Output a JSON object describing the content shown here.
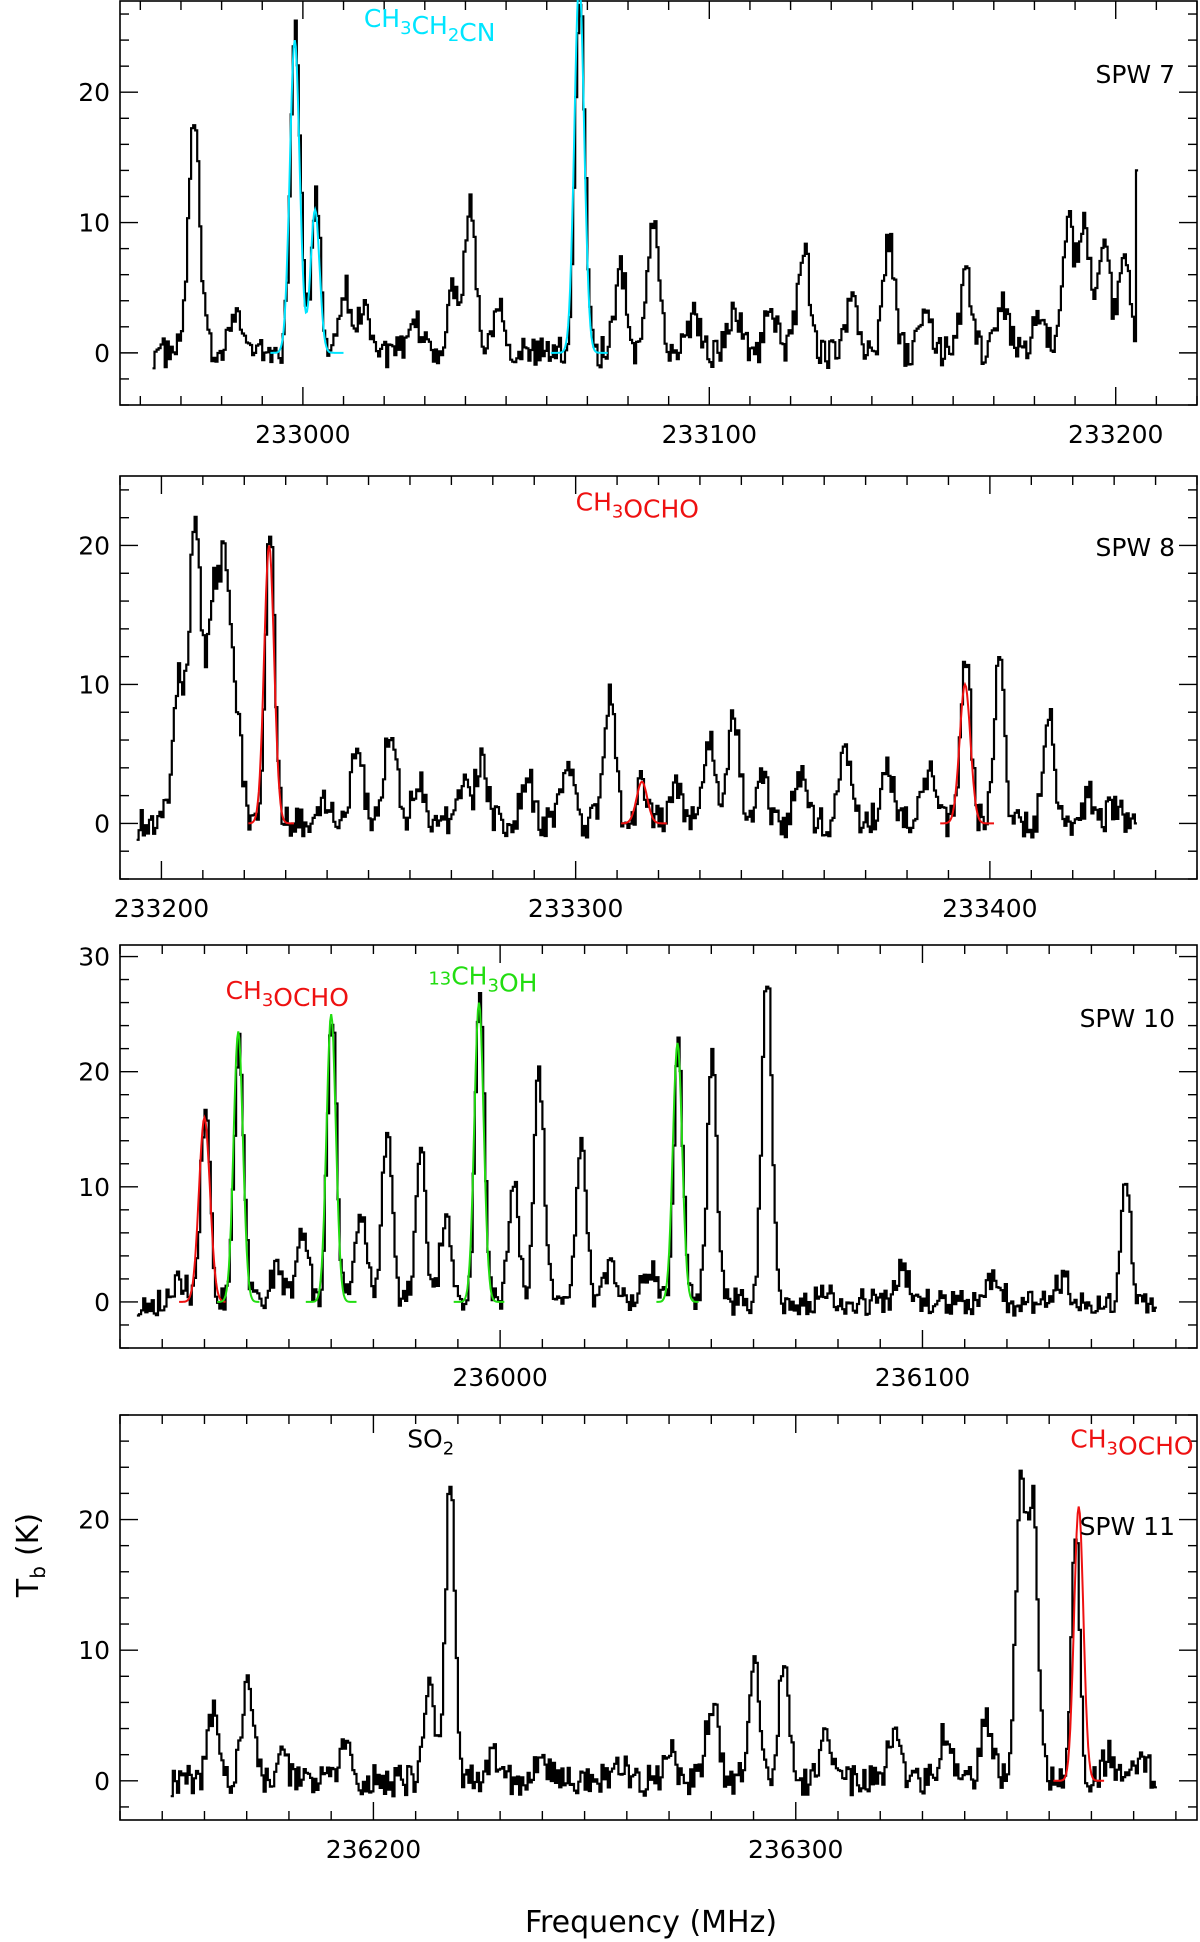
{
  "chart_data": [
    {
      "type": "line",
      "panel_label": "SPW 7",
      "xlim": [
        232955,
        233220
      ],
      "ylim": [
        -4,
        27
      ],
      "x_ticks": [
        "233000",
        "233100",
        "233200"
      ],
      "y_ticks": [
        "0",
        "10",
        "20"
      ],
      "annotations": [
        {
          "text": "CH3CH2CN",
          "parts": [
            [
              "CH",
              ""
            ],
            [
              "3",
              "sub"
            ],
            [
              "CH",
              ""
            ],
            [
              "2",
              "sub"
            ],
            [
              "CN",
              ""
            ]
          ],
          "color": "#00e5ff",
          "x": 233015,
          "y": 25
        }
      ],
      "observed_peaks": [
        {
          "x": 232973,
          "y": 17.5,
          "w": 1.4
        },
        {
          "x": 232983,
          "y": 3.5,
          "w": 1.5
        },
        {
          "x": 232998,
          "y": 25,
          "w": 1.2
        },
        {
          "x": 233003,
          "y": 12,
          "w": 1.1
        },
        {
          "x": 233010,
          "y": 5,
          "w": 1.5
        },
        {
          "x": 233015,
          "y": 3.5,
          "w": 1.5
        },
        {
          "x": 233028,
          "y": 2,
          "w": 1.5
        },
        {
          "x": 233037,
          "y": 5,
          "w": 1.5
        },
        {
          "x": 233041,
          "y": 11.5,
          "w": 1.3
        },
        {
          "x": 233048,
          "y": 4,
          "w": 1.5
        },
        {
          "x": 233068,
          "y": 28,
          "w": 1.2
        },
        {
          "x": 233078,
          "y": 6.5,
          "w": 1.4
        },
        {
          "x": 233086,
          "y": 10.5,
          "w": 1.4
        },
        {
          "x": 233096,
          "y": 3,
          "w": 1.5
        },
        {
          "x": 233106,
          "y": 3.5,
          "w": 1.5
        },
        {
          "x": 233115,
          "y": 3.5,
          "w": 1.5
        },
        {
          "x": 233123,
          "y": 8,
          "w": 1.5
        },
        {
          "x": 233135,
          "y": 4,
          "w": 1.4
        },
        {
          "x": 233144,
          "y": 8.5,
          "w": 1.4
        },
        {
          "x": 233153,
          "y": 3,
          "w": 1.4
        },
        {
          "x": 233163,
          "y": 6,
          "w": 1.4
        },
        {
          "x": 233172,
          "y": 4,
          "w": 1.4
        },
        {
          "x": 233181,
          "y": 3,
          "w": 1.5
        },
        {
          "x": 233188,
          "y": 10,
          "w": 1.4
        },
        {
          "x": 233192,
          "y": 10.5,
          "w": 1.4
        },
        {
          "x": 233197,
          "y": 8.5,
          "w": 1.4
        },
        {
          "x": 233202,
          "y": 8,
          "w": 1.3
        }
      ],
      "observed_end": {
        "x": 233205,
        "y": 14
      },
      "fits": [
        {
          "color": "#00e5ff",
          "peaks": [
            {
              "x": 232998,
              "y": 24,
              "w": 1.2
            },
            {
              "x": 233003,
              "y": 11,
              "w": 1.1
            }
          ],
          "xrange": [
            232992,
            233010
          ]
        },
        {
          "color": "#00e5ff",
          "peaks": [
            {
              "x": 233068,
              "y": 28.5,
              "w": 1.2
            }
          ],
          "xrange": [
            233061,
            233075
          ]
        }
      ]
    },
    {
      "type": "line",
      "panel_label": "SPW 8",
      "xlim": [
        233190,
        233450
      ],
      "ylim": [
        -4,
        25
      ],
      "x_ticks": [
        "233200",
        "233300",
        "233400"
      ],
      "y_ticks": [
        "0",
        "10",
        "20"
      ],
      "annotations": [
        {
          "text": "CH3OCHO",
          "parts": [
            [
              "CH",
              ""
            ],
            [
              "3",
              "sub"
            ],
            [
              "OCHO",
              ""
            ]
          ],
          "color": "#ee1111",
          "x": 233300,
          "y": 22.5
        }
      ],
      "observed_peaks": [
        {
          "x": 233204,
          "y": 10,
          "w": 1.5
        },
        {
          "x": 233208,
          "y": 22,
          "w": 1.4
        },
        {
          "x": 233212,
          "y": 15,
          "w": 1.3
        },
        {
          "x": 233215,
          "y": 18,
          "w": 1.4
        },
        {
          "x": 233218,
          "y": 7,
          "w": 1.3
        },
        {
          "x": 233226,
          "y": 21,
          "w": 1.1
        },
        {
          "x": 233240,
          "y": 2,
          "w": 1.5
        },
        {
          "x": 233247,
          "y": 6,
          "w": 1.4
        },
        {
          "x": 233255,
          "y": 6.5,
          "w": 1.6
        },
        {
          "x": 233262,
          "y": 3,
          "w": 1.5
        },
        {
          "x": 233272,
          "y": 3,
          "w": 1.5
        },
        {
          "x": 233277,
          "y": 4.5,
          "w": 1.4
        },
        {
          "x": 233288,
          "y": 3.5,
          "w": 1.4
        },
        {
          "x": 233298,
          "y": 4.5,
          "w": 1.4
        },
        {
          "x": 233308,
          "y": 9,
          "w": 1.4
        },
        {
          "x": 233316,
          "y": 3,
          "w": 1.4
        },
        {
          "x": 233324,
          "y": 3,
          "w": 1.4
        },
        {
          "x": 233332,
          "y": 6,
          "w": 1.4
        },
        {
          "x": 233338,
          "y": 8,
          "w": 1.4
        },
        {
          "x": 233345,
          "y": 3,
          "w": 1.4
        },
        {
          "x": 233354,
          "y": 3.5,
          "w": 1.4
        },
        {
          "x": 233365,
          "y": 5,
          "w": 1.5
        },
        {
          "x": 233375,
          "y": 4,
          "w": 1.5
        },
        {
          "x": 233385,
          "y": 3.5,
          "w": 1.4
        },
        {
          "x": 233394,
          "y": 12,
          "w": 1.2
        },
        {
          "x": 233402,
          "y": 12,
          "w": 1.2
        },
        {
          "x": 233414,
          "y": 8.5,
          "w": 1.3
        },
        {
          "x": 233424,
          "y": 2,
          "w": 1.5
        },
        {
          "x": 233430,
          "y": 1.5,
          "w": 1.5
        }
      ],
      "observed_end": {
        "x": 233435,
        "y": 0
      },
      "fits": [
        {
          "color": "#ee1111",
          "peaks": [
            {
              "x": 233226,
              "y": 20,
              "w": 1.2
            }
          ],
          "xrange": [
            233221,
            233232
          ]
        },
        {
          "color": "#ee1111",
          "peaks": [
            {
              "x": 233316,
              "y": 3,
              "w": 1.3
            }
          ],
          "xrange": [
            233311,
            233322
          ]
        },
        {
          "color": "#ee1111",
          "peaks": [
            {
              "x": 233394,
              "y": 10,
              "w": 1.3
            }
          ],
          "xrange": [
            233388,
            233401
          ]
        }
      ]
    },
    {
      "type": "line",
      "panel_label": "SPW 10",
      "xlim": [
        235910,
        236165
      ],
      "ylim": [
        -4,
        31
      ],
      "x_ticks": [
        "236000",
        "236100"
      ],
      "y_ticks": [
        "0",
        "10",
        "20",
        "30"
      ],
      "annotations": [
        {
          "text": "CH3OCHO",
          "parts": [
            [
              "CH",
              ""
            ],
            [
              "3",
              "sub"
            ],
            [
              "OCHO",
              ""
            ]
          ],
          "color": "#ee1111",
          "x": 235935,
          "y": 26.3
        },
        {
          "text": "13CH3OH",
          "parts": [
            [
              "13",
              "sup"
            ],
            [
              "CH",
              ""
            ],
            [
              "3",
              "sub"
            ],
            [
              "OH",
              ""
            ]
          ],
          "color": "#22dd11",
          "x": 235983,
          "y": 26.8
        }
      ],
      "observed_peaks": [
        {
          "x": 235924,
          "y": 2,
          "w": 1.5
        },
        {
          "x": 235930,
          "y": 17,
          "w": 1.1
        },
        {
          "x": 235938,
          "y": 23,
          "w": 1.1
        },
        {
          "x": 235947,
          "y": 3,
          "w": 1.4
        },
        {
          "x": 235953,
          "y": 6,
          "w": 1.4
        },
        {
          "x": 235960,
          "y": 25,
          "w": 1.1
        },
        {
          "x": 235967,
          "y": 8,
          "w": 1.3
        },
        {
          "x": 235973,
          "y": 15,
          "w": 1.2
        },
        {
          "x": 235981,
          "y": 13,
          "w": 1.2
        },
        {
          "x": 235987,
          "y": 8,
          "w": 1.3
        },
        {
          "x": 235995,
          "y": 26,
          "w": 1.1
        },
        {
          "x": 236003,
          "y": 11,
          "w": 1.2
        },
        {
          "x": 236009,
          "y": 20,
          "w": 1.2
        },
        {
          "x": 236019,
          "y": 14,
          "w": 1.2
        },
        {
          "x": 236026,
          "y": 3,
          "w": 1.4
        },
        {
          "x": 236035,
          "y": 3,
          "w": 1.4
        },
        {
          "x": 236042,
          "y": 22,
          "w": 1.1
        },
        {
          "x": 236050,
          "y": 22,
          "w": 1.1
        },
        {
          "x": 236063,
          "y": 28.5,
          "w": 1.2
        },
        {
          "x": 236077,
          "y": 1.5,
          "w": 1.5
        },
        {
          "x": 236095,
          "y": 3,
          "w": 1.4
        },
        {
          "x": 236117,
          "y": 2.5,
          "w": 1.4
        },
        {
          "x": 236133,
          "y": 2,
          "w": 1.4
        },
        {
          "x": 236148,
          "y": 11,
          "w": 1.1
        }
      ],
      "observed_end": {
        "x": 236155,
        "y": -0.5
      },
      "fits": [
        {
          "color": "#ee1111",
          "peaks": [
            {
              "x": 235930,
              "y": 16,
              "w": 1.3
            }
          ],
          "xrange": [
            235924,
            235935
          ]
        },
        {
          "color": "#22dd11",
          "peaks": [
            {
              "x": 235938,
              "y": 23.5,
              "w": 1.1
            }
          ],
          "xrange": [
            235933,
            235943
          ]
        },
        {
          "color": "#22dd11",
          "peaks": [
            {
              "x": 235960,
              "y": 25,
              "w": 1.1
            }
          ],
          "xrange": [
            235954,
            235966
          ]
        },
        {
          "color": "#22dd11",
          "peaks": [
            {
              "x": 235995,
              "y": 26,
              "w": 1.1
            }
          ],
          "xrange": [
            235989,
            236001
          ]
        },
        {
          "color": "#22dd11",
          "peaks": [
            {
              "x": 236042,
              "y": 22.5,
              "w": 1.1
            }
          ],
          "xrange": [
            236037,
            236047
          ]
        }
      ]
    },
    {
      "type": "line",
      "panel_label": "SPW 11",
      "xlim": [
        236140,
        236395
      ],
      "ylim": [
        -3,
        28
      ],
      "x_ticks": [
        "236200",
        "236300"
      ],
      "y_ticks": [
        "0",
        "10",
        "20"
      ],
      "annotations": [
        {
          "text": "SO2",
          "parts": [
            [
              "SO",
              ""
            ],
            [
              "2",
              "sub"
            ]
          ],
          "color": "#000000",
          "x": 236208,
          "y": 25.5
        },
        {
          "text": "CH3OCHO",
          "parts": [
            [
              "CH",
              ""
            ],
            [
              "3",
              "sub"
            ],
            [
              "OCHO",
              ""
            ]
          ],
          "color": "#ee1111",
          "x": 236365,
          "y": 25.5
        }
      ],
      "observed_peaks": [
        {
          "x": 236162,
          "y": 5,
          "w": 1.4
        },
        {
          "x": 236170,
          "y": 7.5,
          "w": 1.3
        },
        {
          "x": 236178,
          "y": 1.5,
          "w": 1.5
        },
        {
          "x": 236193,
          "y": 2.5,
          "w": 1.4
        },
        {
          "x": 236213,
          "y": 7,
          "w": 1.3
        },
        {
          "x": 236218,
          "y": 23.5,
          "w": 1.1
        },
        {
          "x": 236228,
          "y": 2,
          "w": 1.4
        },
        {
          "x": 236240,
          "y": 1.5,
          "w": 1.5
        },
        {
          "x": 236258,
          "y": 1.5,
          "w": 1.5
        },
        {
          "x": 236270,
          "y": 2.5,
          "w": 1.4
        },
        {
          "x": 236280,
          "y": 6,
          "w": 1.4
        },
        {
          "x": 236290,
          "y": 8.5,
          "w": 1.3
        },
        {
          "x": 236297,
          "y": 9,
          "w": 1.3
        },
        {
          "x": 236307,
          "y": 4,
          "w": 1.4
        },
        {
          "x": 236323,
          "y": 4,
          "w": 1.4
        },
        {
          "x": 236335,
          "y": 3.5,
          "w": 1.4
        },
        {
          "x": 236345,
          "y": 4.5,
          "w": 1.4
        },
        {
          "x": 236353,
          "y": 22,
          "w": 1.2
        },
        {
          "x": 236356,
          "y": 21,
          "w": 1.2
        },
        {
          "x": 236366,
          "y": 19.5,
          "w": 1.0
        },
        {
          "x": 236374,
          "y": 2,
          "w": 1.4
        },
        {
          "x": 236382,
          "y": 1.5,
          "w": 1.4
        }
      ],
      "observed_end": {
        "x": 236385,
        "y": -0.5
      },
      "fits": [
        {
          "color": "#ee1111",
          "peaks": [
            {
              "x": 236367,
              "y": 21,
              "w": 1.1
            }
          ],
          "xrange": [
            236361,
            236373
          ]
        }
      ]
    }
  ],
  "axes": {
    "xlabel": "Frequency (MHz)",
    "ylabel": "T",
    "ylabel_sub": "b",
    "ylabel_unit": "(K)"
  }
}
